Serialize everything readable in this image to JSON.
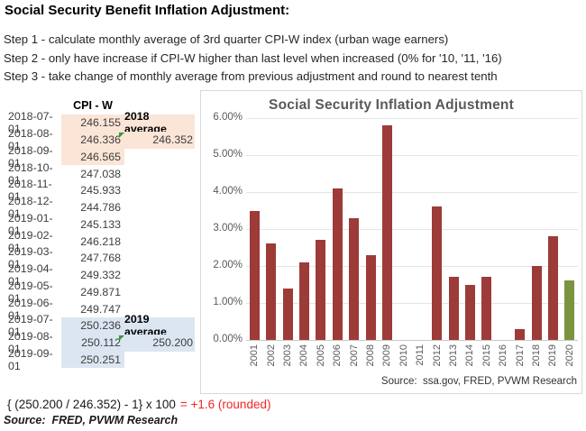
{
  "page": {
    "title": "Social Security Benefit Inflation Adjustment:",
    "steps": [
      "Step 1 - calculate monthly average of 3rd quarter CPI-W index (urban wage earners)",
      "Step 2 - only have increase if CPI-W higher than last level when increased (0% for '10, '11, '16)",
      "Step 3 - take change of monthly average from previous adjustment and round to nearest tenth"
    ],
    "formula": {
      "expression": "{ (250.200 / 246.352) - 1} x 100",
      "result": "= +1.6 (rounded)",
      "result_color": "#f42525"
    },
    "source": "Source:  FRED, PVWM Research"
  },
  "table": {
    "header": "CPI - W",
    "highlight_colors": {
      "orange": "#fbe5d6",
      "blue": "#dce6f2"
    },
    "marker_color": "#38963c",
    "rows": [
      {
        "date": "2018-07-01",
        "value": "246.155",
        "hl": "orange",
        "note": "2018 average"
      },
      {
        "date": "2018-08-01",
        "value": "246.336",
        "hl": "orange",
        "marker": true,
        "note2": "246.352"
      },
      {
        "date": "2018-09-01",
        "value": "246.565",
        "hl": "orange"
      },
      {
        "date": "2018-10-01",
        "value": "247.038"
      },
      {
        "date": "2018-11-01",
        "value": "245.933"
      },
      {
        "date": "2018-12-01",
        "value": "244.786"
      },
      {
        "date": "2019-01-01",
        "value": "245.133"
      },
      {
        "date": "2019-02-01",
        "value": "246.218"
      },
      {
        "date": "2019-03-01",
        "value": "247.768"
      },
      {
        "date": "2019-04-01",
        "value": "249.332"
      },
      {
        "date": "2019-05-01",
        "value": "249.871"
      },
      {
        "date": "2019-06-01",
        "value": "249.747"
      },
      {
        "date": "2019-07-01",
        "value": "250.236",
        "hl": "blue",
        "note": "2019 average"
      },
      {
        "date": "2019-08-01",
        "value": "250.112",
        "hl": "blue",
        "marker": true,
        "note2": "250.200"
      },
      {
        "date": "2019-09-01",
        "value": "250.251",
        "hl": "blue"
      }
    ]
  },
  "chart_data": {
    "type": "bar",
    "title": "Social Security Inflation Adjustment",
    "categories": [
      "2001",
      "2002",
      "2003",
      "2004",
      "2005",
      "2006",
      "2007",
      "2008",
      "2009",
      "2010",
      "2011",
      "2012",
      "2013",
      "2014",
      "2015",
      "2016",
      "2017",
      "2018",
      "2019",
      "2020"
    ],
    "values": [
      3.5,
      2.6,
      1.4,
      2.1,
      2.7,
      4.1,
      3.3,
      2.3,
      5.8,
      0,
      0,
      3.6,
      1.7,
      1.5,
      1.7,
      0,
      0.3,
      2.0,
      2.8,
      1.6
    ],
    "ylim": [
      0,
      6
    ],
    "y_tick_labels": [
      "0.00%",
      "1.00%",
      "2.00%",
      "3.00%",
      "4.00%",
      "5.00%",
      "6.00%"
    ],
    "grid": true,
    "legend": "none",
    "xlabel": "",
    "ylabel": "",
    "bar_color": "#9c3b38",
    "highlight": {
      "index": 19,
      "color": "#7a9440"
    },
    "source_note": "Source:  ssa.gov, FRED, PVWM Research"
  }
}
